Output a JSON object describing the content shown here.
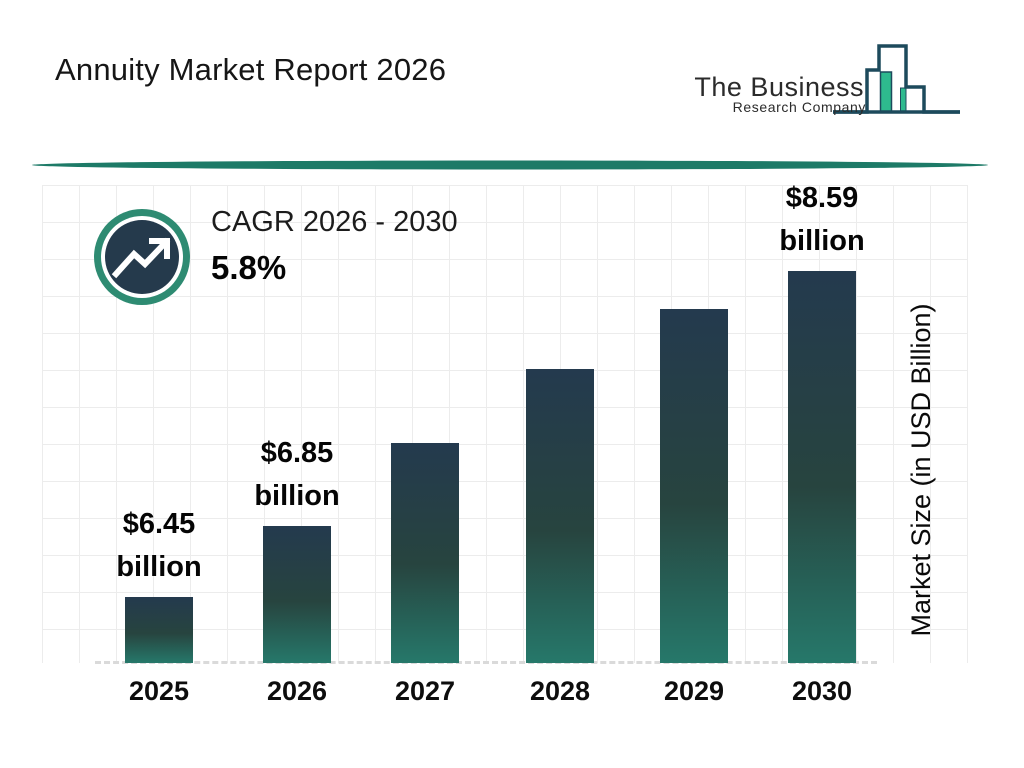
{
  "header": {
    "title": "Annuity Market Report 2026",
    "logo": {
      "line1": "The Business",
      "line2": "Research Company"
    }
  },
  "cagr": {
    "label": "CAGR 2026 - 2030",
    "value": "5.8%"
  },
  "y_axis_label": "Market Size (in USD Billion)",
  "colors": {
    "bar_gradient_top": "#243a4e",
    "bar_gradient_bottom": "#26786a",
    "badge_ring_green": "#2e8b72",
    "badge_inner_navy": "#253a4c",
    "divider_teal": "#1d7a67",
    "logo_navy": "#1d4a5c",
    "logo_green": "#2eba8e",
    "grid_line": "#ececec",
    "baseline_dash": "#dadada"
  },
  "chart_data": {
    "type": "bar",
    "title": "Annuity Market Report 2026",
    "ylabel": "Market Size (in USD Billion)",
    "unit": "USD billion",
    "categories": [
      "2025",
      "2026",
      "2027",
      "2028",
      "2029",
      "2030"
    ],
    "values": [
      6.45,
      6.85,
      7.45,
      7.95,
      8.35,
      8.59
    ],
    "values_note": "2027-2029 bars are unlabeled in the image; their values are estimated from bar heights",
    "ylim": [
      6.0,
      8.8
    ],
    "axis_truncated": true,
    "grid": true,
    "legend": null,
    "bars": [
      {
        "year": "2025",
        "value": 6.45,
        "label_value": "$6.45",
        "label_unit": "billion"
      },
      {
        "year": "2026",
        "value": 6.85,
        "label_value": "$6.85",
        "label_unit": "billion"
      },
      {
        "year": "2027",
        "value": 7.45,
        "label_value": "",
        "label_unit": ""
      },
      {
        "year": "2028",
        "value": 7.95,
        "label_value": "",
        "label_unit": ""
      },
      {
        "year": "2029",
        "value": 8.35,
        "label_value": "",
        "label_unit": ""
      },
      {
        "year": "2030",
        "value": 8.59,
        "label_value": "$8.59",
        "label_unit": "billion"
      }
    ]
  }
}
